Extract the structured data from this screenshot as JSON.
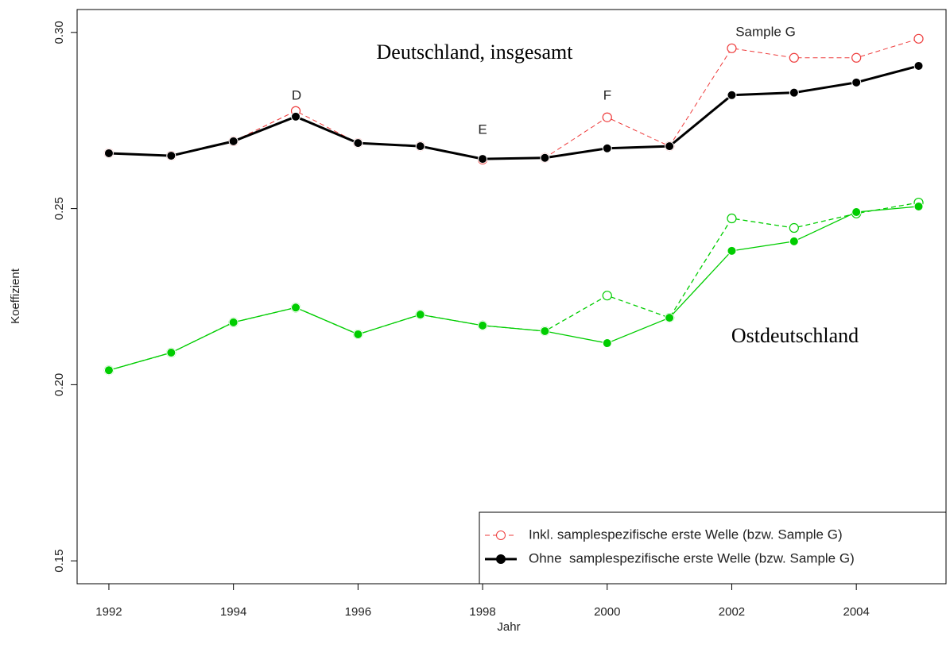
{
  "chart_data": {
    "type": "line",
    "x_label": "Jahr",
    "y_label": "Koeffizient",
    "x": [
      1992,
      1993,
      1994,
      1995,
      1996,
      1997,
      1998,
      1999,
      2000,
      2001,
      2002,
      2003,
      2004,
      2005
    ],
    "series": [
      {
        "name": "Inkl. samplespezifische erste Welle (bzw. Sample G)",
        "color": "#ee3b3b",
        "dashed": true,
        "marker": "open",
        "line_width": 1,
        "values": [
          0.2657,
          0.265,
          0.2691,
          0.2777,
          0.2686,
          0.2677,
          0.2639,
          0.2644,
          0.2759,
          0.2677,
          0.2955,
          0.2928,
          0.2928,
          0.2982
        ]
      },
      {
        "name": "Ohne  samplespezifische erste Welle (bzw. Sample G)",
        "color": "#000000",
        "dashed": false,
        "marker": "filled",
        "line_width": 3,
        "values": [
          0.2657,
          0.265,
          0.2691,
          0.2761,
          0.2686,
          0.2677,
          0.2641,
          0.2644,
          0.2671,
          0.2677,
          0.2822,
          0.2829,
          0.2858,
          0.2905
        ]
      },
      {
        "color": "#00cd00",
        "dashed": true,
        "marker": "open",
        "line_width": 1.3,
        "values": [
          0.2041,
          0.2091,
          0.2177,
          0.2219,
          0.2143,
          0.2199,
          0.2168,
          0.2152,
          0.2253,
          0.219,
          0.2472,
          0.2445,
          0.2486,
          0.2517
        ]
      },
      {
        "color": "#00cd00",
        "dashed": false,
        "marker": "filled",
        "line_width": 1.3,
        "values": [
          0.2041,
          0.2091,
          0.2177,
          0.2219,
          0.2143,
          0.2199,
          0.2168,
          0.2152,
          0.2118,
          0.219,
          0.238,
          0.2407,
          0.249,
          0.2506
        ]
      }
    ],
    "xlim": [
      1991.49,
      2005.44
    ],
    "xticks": [
      1992,
      1994,
      1996,
      1998,
      2000,
      2002,
      2004
    ],
    "ylim": [
      0.1435,
      0.3065
    ],
    "yticks": [
      0.15,
      {
        "value": 0.2,
        "label": "0.20"
      },
      0.25,
      {
        "value": 0.3,
        "label": "0.30"
      }
    ],
    "legend_position": "bottom-right",
    "annotations": [
      "Deutschland, insgesamt",
      "Ostdeutschland",
      "D",
      "E",
      "F",
      "Sample G"
    ]
  }
}
